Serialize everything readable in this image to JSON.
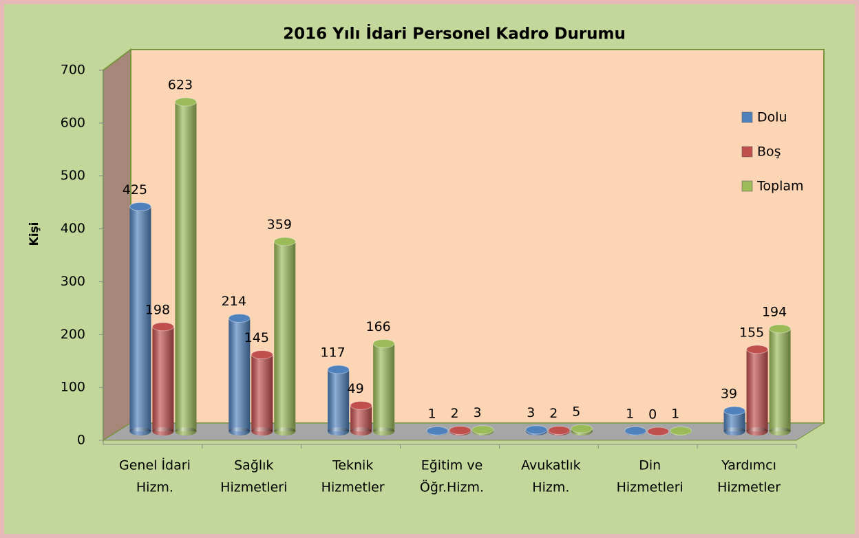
{
  "chart_data": {
    "type": "bar3d",
    "title": "2016 Yılı İdari Personel Kadro Durumu",
    "y_label": "Kişi",
    "categories": [
      [
        "Genel İdari",
        "Hizm."
      ],
      [
        "Sağlık",
        "Hizmetleri"
      ],
      [
        "Teknik",
        "Hizmetler"
      ],
      [
        "Eğitim ve",
        "Öğr.Hizm."
      ],
      [
        "Avukatlık",
        "Hizm."
      ],
      [
        "Din",
        "Hizmetleri"
      ],
      [
        "Yardımcı",
        "Hizmetler"
      ]
    ],
    "series": [
      {
        "name": "Dolu",
        "color": "#4f81bd",
        "values": [
          425,
          214,
          117,
          1,
          3,
          1,
          39
        ]
      },
      {
        "name": "Boş",
        "color": "#c0504d",
        "values": [
          198,
          145,
          49,
          2,
          2,
          0,
          155
        ]
      },
      {
        "name": "Toplam",
        "color": "#9bbb59",
        "values": [
          623,
          359,
          166,
          3,
          5,
          1,
          194
        ]
      }
    ],
    "ylim": [
      0,
      700
    ],
    "yticks": [
      0,
      100,
      200,
      300,
      400,
      500,
      600,
      700
    ],
    "legend": "right"
  }
}
